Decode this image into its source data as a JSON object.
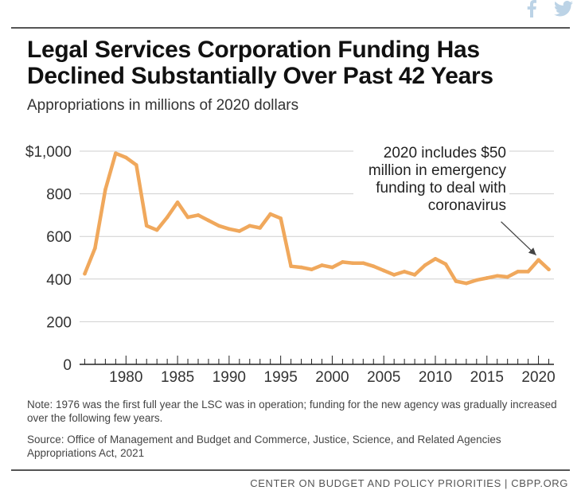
{
  "header": {
    "title": "Legal Services Corporation Funding Has Declined Substantially Over Past 42 Years",
    "subtitle": "Appropriations in millions of 2020 dollars"
  },
  "share_icons": {
    "facebook": "facebook-icon",
    "twitter": "twitter-icon",
    "color": "#bcd3e6"
  },
  "chart_data": {
    "type": "line",
    "title": "Legal Services Corporation Funding Has Declined Substantially Over Past 42 Years",
    "subtitle": "Appropriations in millions of 2020 dollars",
    "xlabel": "",
    "ylabel": "",
    "x": [
      1976,
      1977,
      1978,
      1979,
      1980,
      1981,
      1982,
      1983,
      1984,
      1985,
      1986,
      1987,
      1988,
      1989,
      1990,
      1991,
      1992,
      1993,
      1994,
      1995,
      1996,
      1997,
      1998,
      1999,
      2000,
      2001,
      2002,
      2003,
      2004,
      2005,
      2006,
      2007,
      2008,
      2009,
      2010,
      2011,
      2012,
      2013,
      2014,
      2015,
      2016,
      2017,
      2018,
      2019,
      2020,
      2021
    ],
    "series": [
      {
        "values": [
          425,
          545,
          820,
          990,
          970,
          935,
          650,
          630,
          690,
          760,
          690,
          700,
          675,
          650,
          635,
          625,
          650,
          640,
          705,
          685,
          460,
          455,
          445,
          465,
          455,
          480,
          475,
          475,
          460,
          440,
          420,
          435,
          420,
          465,
          495,
          470,
          390,
          380,
          395,
          405,
          415,
          410,
          435,
          435,
          490,
          445
        ],
        "color": "#f0a85c"
      }
    ],
    "ylim": [
      0,
      1000
    ],
    "yticks": [
      0,
      200,
      400,
      600,
      800,
      1000
    ],
    "ytick_labels": [
      "0",
      "200",
      "400",
      "600",
      "800",
      "$1,000"
    ],
    "xlim": [
      1975.5,
      2021.5
    ],
    "xticks_labeled": [
      1980,
      1985,
      1990,
      1995,
      2000,
      2005,
      2010,
      2015,
      2020
    ],
    "xtick_labels": [
      "1980",
      "1985",
      "1990",
      "1995",
      "2000",
      "2005",
      "2010",
      "2015",
      "2020"
    ],
    "grid": true,
    "annotation": {
      "lines": [
        "2020 includes $50",
        "million in emergency",
        "funding to deal with",
        "coronavirus"
      ],
      "target_x": 2020,
      "target_y": 490
    }
  },
  "note": "Note: 1976 was the first full year the LSC was in operation; funding for the new agency was gradually increased over the following few years.",
  "source": "Source: Office of Management and Budget and Commerce, Justice, Science, and Related Agencies Appropriations Act, 2021",
  "footer": "CENTER ON BUDGET AND POLICY PRIORITIES | CBPP.ORG"
}
